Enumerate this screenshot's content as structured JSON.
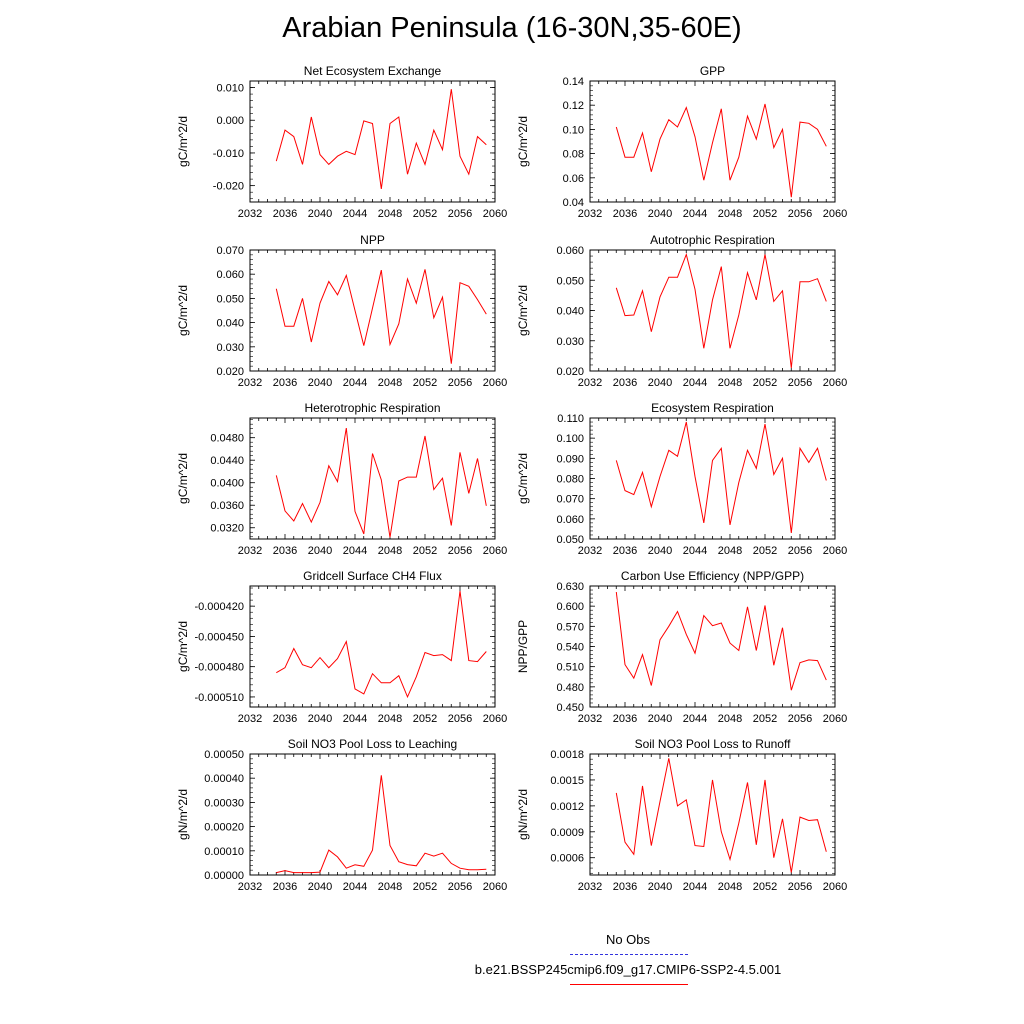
{
  "page": {
    "title": "Arabian Peninsula (16-30N,35-60E)"
  },
  "legend": {
    "obs_label": "No Obs",
    "obs_color": "#3333dd",
    "run_label": "b.e21.BSSP245cmip6.f09_g17.CMIP6-SSP2-4.5.001",
    "run_color": "#ff0000"
  },
  "chart_data": [
    {
      "type": "line",
      "title": "Net Ecosystem Exchange",
      "ylabel": "gC/m^2/d",
      "xlim": [
        2032,
        2060
      ],
      "ylim": [
        -0.025,
        0.012
      ],
      "yticks": [
        -0.02,
        -0.01,
        0.0,
        0.01
      ],
      "ytick_labels": [
        "-0.020",
        "-0.010",
        "0.000",
        "0.010"
      ],
      "series": [
        {
          "x": [
            2035,
            2036,
            2037,
            2038,
            2039,
            2040,
            2041,
            2042,
            2043,
            2044,
            2045,
            2046,
            2047,
            2048,
            2049,
            2050,
            2051,
            2052,
            2053,
            2054,
            2055,
            2056,
            2057,
            2058,
            2059
          ],
          "y": [
            -0.0125,
            -0.003,
            -0.005,
            -0.0135,
            0.001,
            -0.0105,
            -0.0135,
            -0.011,
            -0.0095,
            -0.0105,
            -0.0002,
            -0.001,
            -0.021,
            -0.001,
            0.001,
            -0.0165,
            -0.007,
            -0.0135,
            -0.003,
            -0.009,
            0.0095,
            -0.011,
            -0.0165,
            -0.005,
            -0.0075
          ]
        }
      ]
    },
    {
      "type": "line",
      "title": "GPP",
      "ylabel": "gC/m^2/d",
      "xlim": [
        2032,
        2060
      ],
      "ylim": [
        0.04,
        0.14
      ],
      "yticks": [
        0.04,
        0.06,
        0.08,
        0.1,
        0.12,
        0.14
      ],
      "ytick_labels": [
        "0.04",
        "0.06",
        "0.08",
        "0.10",
        "0.12",
        "0.14"
      ],
      "series": [
        {
          "x": [
            2035,
            2036,
            2037,
            2038,
            2039,
            2040,
            2041,
            2042,
            2043,
            2044,
            2045,
            2046,
            2047,
            2048,
            2049,
            2050,
            2051,
            2052,
            2053,
            2054,
            2055,
            2056,
            2057,
            2058,
            2059
          ],
          "y": [
            0.102,
            0.077,
            0.077,
            0.097,
            0.065,
            0.092,
            0.108,
            0.102,
            0.118,
            0.094,
            0.058,
            0.089,
            0.117,
            0.058,
            0.077,
            0.111,
            0.092,
            0.121,
            0.085,
            0.1,
            0.044,
            0.106,
            0.105,
            0.1,
            0.086
          ]
        }
      ]
    },
    {
      "type": "line",
      "title": "NPP",
      "ylabel": "gC/m^2/d",
      "xlim": [
        2032,
        2060
      ],
      "ylim": [
        0.02,
        0.07
      ],
      "yticks": [
        0.02,
        0.03,
        0.04,
        0.05,
        0.06,
        0.07
      ],
      "ytick_labels": [
        "0.020",
        "0.030",
        "0.040",
        "0.050",
        "0.060",
        "0.070"
      ],
      "series": [
        {
          "x": [
            2035,
            2036,
            2037,
            2038,
            2039,
            2040,
            2041,
            2042,
            2043,
            2044,
            2045,
            2046,
            2047,
            2048,
            2049,
            2050,
            2051,
            2052,
            2053,
            2054,
            2055,
            2056,
            2057,
            2058,
            2059
          ],
          "y": [
            0.054,
            0.0385,
            0.0385,
            0.05,
            0.032,
            0.048,
            0.057,
            0.0515,
            0.0595,
            0.045,
            0.0305,
            0.046,
            0.0617,
            0.031,
            0.0395,
            0.058,
            0.048,
            0.062,
            0.042,
            0.0505,
            0.023,
            0.0565,
            0.055,
            0.0495,
            0.0435
          ]
        }
      ]
    },
    {
      "type": "line",
      "title": "Autotrophic Respiration",
      "ylabel": "gC/m^2/d",
      "xlim": [
        2032,
        2060
      ],
      "ylim": [
        0.02,
        0.06
      ],
      "yticks": [
        0.02,
        0.03,
        0.04,
        0.05,
        0.06
      ],
      "ytick_labels": [
        "0.020",
        "0.030",
        "0.040",
        "0.050",
        "0.060"
      ],
      "series": [
        {
          "x": [
            2035,
            2036,
            2037,
            2038,
            2039,
            2040,
            2041,
            2042,
            2043,
            2044,
            2045,
            2046,
            2047,
            2048,
            2049,
            2050,
            2051,
            2052,
            2053,
            2054,
            2055,
            2056,
            2057,
            2058,
            2059
          ],
          "y": [
            0.0475,
            0.0383,
            0.0385,
            0.0465,
            0.033,
            0.0445,
            0.051,
            0.051,
            0.0585,
            0.047,
            0.0275,
            0.0435,
            0.0545,
            0.0275,
            0.0385,
            0.0525,
            0.0435,
            0.0585,
            0.043,
            0.0465,
            0.021,
            0.0495,
            0.0495,
            0.0505,
            0.043
          ]
        }
      ]
    },
    {
      "type": "line",
      "title": "Heterotrophic Respiration",
      "ylabel": "gC/m^2/d",
      "xlim": [
        2032,
        2060
      ],
      "ylim": [
        0.03,
        0.0515
      ],
      "yticks": [
        0.032,
        0.036,
        0.04,
        0.044,
        0.048
      ],
      "ytick_labels": [
        "0.0320",
        "0.0360",
        "0.0400",
        "0.0440",
        "0.0480"
      ],
      "series": [
        {
          "x": [
            2035,
            2036,
            2037,
            2038,
            2039,
            2040,
            2041,
            2042,
            2043,
            2044,
            2045,
            2046,
            2047,
            2048,
            2049,
            2050,
            2051,
            2052,
            2053,
            2054,
            2055,
            2056,
            2057,
            2058,
            2059
          ],
          "y": [
            0.0413,
            0.035,
            0.0332,
            0.0363,
            0.033,
            0.0365,
            0.043,
            0.0402,
            0.0497,
            0.0349,
            0.0309,
            0.0452,
            0.0405,
            0.0303,
            0.0403,
            0.041,
            0.041,
            0.0483,
            0.0388,
            0.0408,
            0.0324,
            0.0454,
            0.0381,
            0.0443,
            0.0359
          ]
        }
      ]
    },
    {
      "type": "line",
      "title": "Ecosystem Respiration",
      "ylabel": "gC/m^2/d",
      "xlim": [
        2032,
        2060
      ],
      "ylim": [
        0.05,
        0.11
      ],
      "yticks": [
        0.05,
        0.06,
        0.07,
        0.08,
        0.09,
        0.1,
        0.11
      ],
      "ytick_labels": [
        "0.050",
        "0.060",
        "0.070",
        "0.080",
        "0.090",
        "0.100",
        "0.110"
      ],
      "series": [
        {
          "x": [
            2035,
            2036,
            2037,
            2038,
            2039,
            2040,
            2041,
            2042,
            2043,
            2044,
            2045,
            2046,
            2047,
            2048,
            2049,
            2050,
            2051,
            2052,
            2053,
            2054,
            2055,
            2056,
            2057,
            2058,
            2059
          ],
          "y": [
            0.089,
            0.074,
            0.072,
            0.083,
            0.066,
            0.081,
            0.094,
            0.091,
            0.108,
            0.081,
            0.058,
            0.089,
            0.095,
            0.057,
            0.078,
            0.094,
            0.085,
            0.107,
            0.082,
            0.09,
            0.053,
            0.095,
            0.088,
            0.095,
            0.079
          ]
        }
      ]
    },
    {
      "type": "line",
      "title": "Gridcell Surface CH4 Flux",
      "ylabel": "gC/m^2/d",
      "xlim": [
        2032,
        2060
      ],
      "ylim": [
        -0.00052,
        -0.0004
      ],
      "yticks": [
        -0.00051,
        -0.00048,
        -0.00045,
        -0.00042
      ],
      "ytick_labels": [
        "-0.000510",
        "-0.000480",
        "-0.000450",
        "-0.000420"
      ],
      "series": [
        {
          "x": [
            2035,
            2036,
            2037,
            2038,
            2039,
            2040,
            2041,
            2042,
            2043,
            2044,
            2045,
            2046,
            2047,
            2048,
            2049,
            2050,
            2051,
            2052,
            2053,
            2054,
            2055,
            2056,
            2057,
            2058,
            2059
          ],
          "y": [
            -0.000486,
            -0.000481,
            -0.000462,
            -0.000478,
            -0.000481,
            -0.000471,
            -0.000481,
            -0.000472,
            -0.000455,
            -0.000502,
            -0.000507,
            -0.000487,
            -0.000496,
            -0.000496,
            -0.000489,
            -0.00051,
            -0.00049,
            -0.000466,
            -0.000469,
            -0.000468,
            -0.000474,
            -0.000405,
            -0.000474,
            -0.000475,
            -0.000465
          ]
        }
      ]
    },
    {
      "type": "line",
      "title": "Carbon Use Efficiency (NPP/GPP)",
      "ylabel": "NPP/GPP",
      "xlim": [
        2032,
        2060
      ],
      "ylim": [
        0.45,
        0.63
      ],
      "yticks": [
        0.45,
        0.48,
        0.51,
        0.54,
        0.57,
        0.6,
        0.63
      ],
      "ytick_labels": [
        "0.450",
        "0.480",
        "0.510",
        "0.540",
        "0.570",
        "0.600",
        "0.630"
      ],
      "series": [
        {
          "x": [
            2035,
            2036,
            2037,
            2038,
            2039,
            2040,
            2041,
            2042,
            2043,
            2044,
            2045,
            2046,
            2047,
            2048,
            2049,
            2050,
            2051,
            2052,
            2053,
            2054,
            2055,
            2056,
            2057,
            2058,
            2059
          ],
          "y": [
            0.621,
            0.513,
            0.493,
            0.528,
            0.482,
            0.55,
            0.57,
            0.592,
            0.558,
            0.53,
            0.586,
            0.571,
            0.575,
            0.545,
            0.534,
            0.599,
            0.534,
            0.601,
            0.512,
            0.568,
            0.475,
            0.516,
            0.52,
            0.519,
            0.49
          ]
        }
      ]
    },
    {
      "type": "line",
      "title": "Soil NO3 Pool Loss to Leaching",
      "ylabel": "gN/m^2/d",
      "xlim": [
        2032,
        2060
      ],
      "ylim": [
        0.0,
        0.0005
      ],
      "yticks": [
        0.0,
        0.0001,
        0.0002,
        0.0003,
        0.0004,
        0.0005
      ],
      "ytick_labels": [
        "0.00000",
        "0.00010",
        "0.00020",
        "0.00030",
        "0.00040",
        "0.00050"
      ],
      "series": [
        {
          "x": [
            2035,
            2036,
            2037,
            2038,
            2039,
            2040,
            2041,
            2042,
            2043,
            2044,
            2045,
            2046,
            2047,
            2048,
            2049,
            2050,
            2051,
            2052,
            2053,
            2054,
            2055,
            2056,
            2057,
            2058,
            2059
          ],
          "y": [
            1e-05,
            1.8e-05,
            1e-05,
            1e-05,
            1e-05,
            1.2e-05,
            0.000103,
            7.5e-05,
            2.8e-05,
            4.2e-05,
            3.6e-05,
            0.000103,
            0.000412,
            0.000122,
            5.5e-05,
            4.3e-05,
            3.8e-05,
            9e-05,
            7.8e-05,
            9e-05,
            4.8e-05,
            2.8e-05,
            2.2e-05,
            2.2e-05,
            2.4e-05
          ]
        }
      ]
    },
    {
      "type": "line",
      "title": "Soil NO3 Pool Loss to Runoff",
      "ylabel": "gN/m^2/d",
      "xlim": [
        2032,
        2060
      ],
      "ylim": [
        0.0004,
        0.0018
      ],
      "yticks": [
        0.0006,
        0.0009,
        0.0012,
        0.0015,
        0.0018
      ],
      "ytick_labels": [
        "0.0006",
        "0.0009",
        "0.0012",
        "0.0015",
        "0.0018"
      ],
      "series": [
        {
          "x": [
            2035,
            2036,
            2037,
            2038,
            2039,
            2040,
            2041,
            2042,
            2043,
            2044,
            2045,
            2046,
            2047,
            2048,
            2049,
            2050,
            2051,
            2052,
            2053,
            2054,
            2055,
            2056,
            2057,
            2058,
            2059
          ],
          "y": [
            0.00135,
            0.00078,
            0.00064,
            0.00143,
            0.00074,
            0.00125,
            0.00175,
            0.0012,
            0.00127,
            0.00074,
            0.00073,
            0.0015,
            0.0009,
            0.00058,
            0.001,
            0.00147,
            0.00075,
            0.0015,
            0.0006,
            0.00105,
            0.00043,
            0.00107,
            0.00103,
            0.00104,
            0.00067
          ]
        }
      ]
    }
  ],
  "xticks": [
    2032,
    2036,
    2040,
    2044,
    2048,
    2052,
    2056,
    2060
  ],
  "xtick_labels": [
    "2032",
    "2036",
    "2040",
    "2044",
    "2048",
    "2052",
    "2056",
    "2060"
  ]
}
